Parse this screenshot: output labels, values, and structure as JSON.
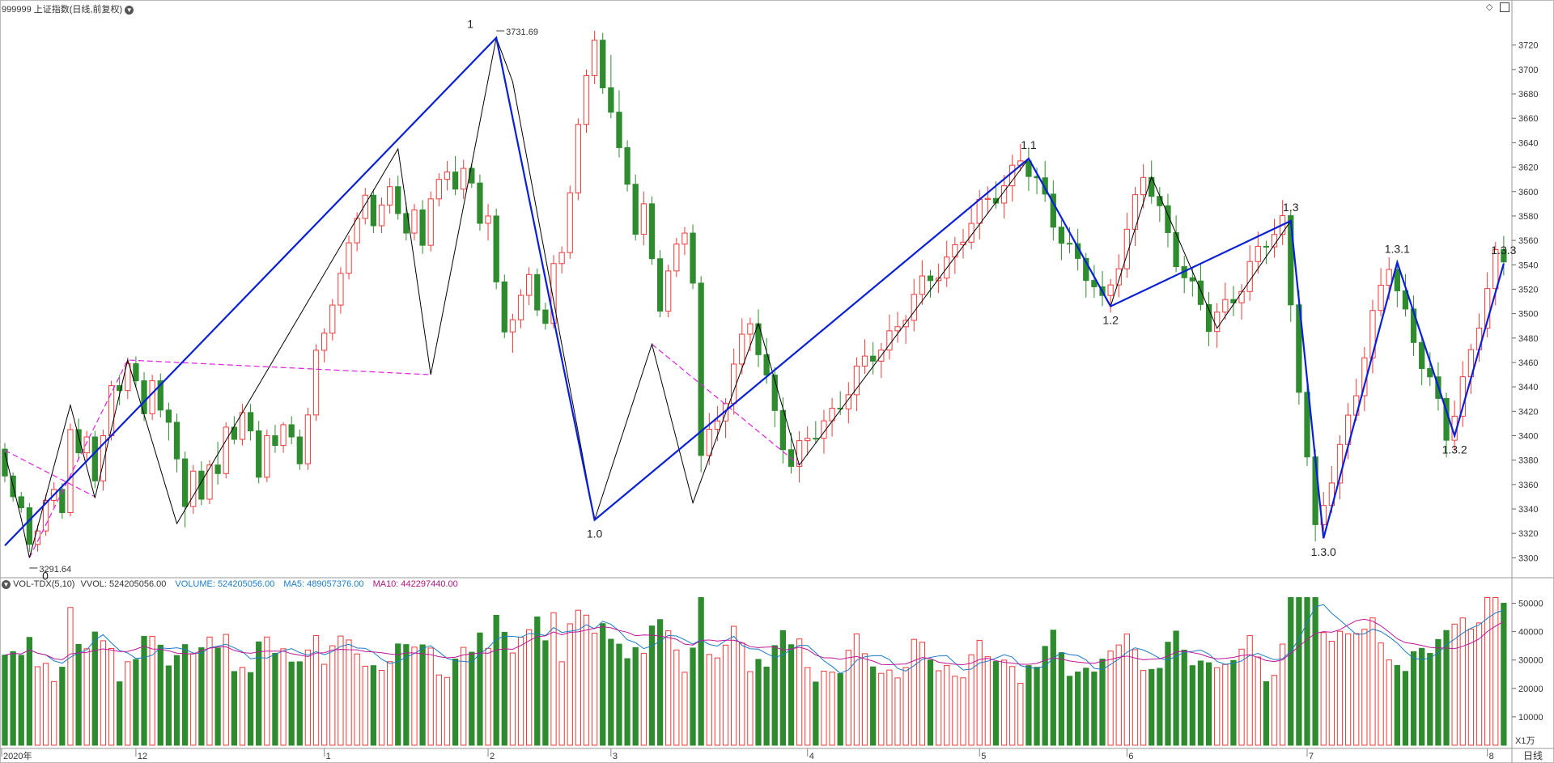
{
  "header": {
    "title": "999999 上证指数(日线,前复权)",
    "menu_icon": "chevron-down-circle-icon",
    "right_icons": [
      "diamond-icon",
      "panel-toggle-icon"
    ]
  },
  "volume_header": {
    "indicator": "VOL-TDX(5,10)",
    "vvol": "VVOL: 524205056.00",
    "volume": "VOLUME: 524205056.00",
    "ma5": "MA5: 489057376.00",
    "ma10": "MA10: 442297440.00"
  },
  "bottom_right_label": "日线",
  "volume_unit": "X1万",
  "colors": {
    "up": "#f23a3a",
    "down": "#2e8b2e",
    "wave_main": "#0a20d8",
    "wave_sub": "#000000",
    "channel": "#e020e0",
    "ma5": "#1a7cc8",
    "ma10": "#c0159a",
    "volume_text": "#1a7cc8",
    "ma10_text": "#b0157f"
  },
  "chart_data": [
    {
      "type": "candlestick",
      "title": "999999 上证指数(日线,前复权)",
      "y_ticks": [
        3300,
        3320,
        3340,
        3360,
        3380,
        3400,
        3420,
        3440,
        3460,
        3480,
        3500,
        3520,
        3540,
        3560,
        3580,
        3600,
        3620,
        3640,
        3660,
        3680,
        3700,
        3720
      ],
      "ylim": [
        3285,
        3745
      ],
      "x_month_labels": [
        "2020年",
        "12",
        "1",
        "2",
        "3",
        "4",
        "5",
        "6",
        "7",
        "8"
      ],
      "annotations": {
        "high": "3731.69",
        "low": "3291.64"
      },
      "wave_labels": [
        "0",
        "1",
        "1.0",
        "1.1",
        "1.2",
        "1.3",
        "1.3.0",
        "1.3.1",
        "1.3.2",
        "1.3.3"
      ],
      "wave_main": [
        [
          0,
          3310
        ],
        [
          60,
          3726
        ],
        [
          72,
          3331
        ],
        [
          125,
          3627
        ],
        [
          135,
          3506
        ],
        [
          157,
          3576
        ],
        [
          161,
          3316
        ],
        [
          170,
          3542
        ],
        [
          177,
          3400
        ],
        [
          183,
          3541
        ]
      ],
      "wave_sub": [
        [
          0,
          3386
        ],
        [
          2,
          3332
        ],
        [
          3,
          3300
        ],
        [
          8,
          3425
        ],
        [
          11,
          3349
        ],
        [
          15,
          3462
        ],
        [
          21,
          3328
        ],
        [
          48,
          3635
        ],
        [
          52,
          3450
        ],
        [
          60,
          3726
        ],
        [
          62,
          3690
        ],
        [
          72,
          3331
        ],
        [
          79,
          3475
        ],
        [
          84,
          3345
        ],
        [
          92,
          3492
        ],
        [
          97,
          3376
        ],
        [
          125,
          3627
        ],
        [
          135,
          3506
        ],
        [
          140,
          3612
        ],
        [
          148,
          3488
        ],
        [
          157,
          3576
        ]
      ],
      "channels": [
        [
          [
            0,
            3388
          ],
          [
            11,
            3350
          ]
        ],
        [
          [
            3,
            3300
          ],
          [
            15,
            3462
          ],
          [
            52,
            3450
          ]
        ],
        [
          [
            79,
            3475
          ],
          [
            97,
            3376
          ]
        ]
      ],
      "candles": [
        [
          3389,
          3394,
          3362,
          3367
        ],
        [
          3367,
          3370,
          3346,
          3350
        ],
        [
          3350,
          3354,
          3337,
          3341
        ],
        [
          3341,
          3345,
          3305,
          3311
        ],
        [
          3311,
          3327,
          3305,
          3322
        ],
        [
          3322,
          3352,
          3318,
          3347
        ],
        [
          3347,
          3362,
          3341,
          3356
        ],
        [
          3356,
          3361,
          3332,
          3337
        ],
        [
          3337,
          3410,
          3334,
          3405
        ],
        [
          3405,
          3414,
          3380,
          3386
        ],
        [
          3386,
          3404,
          3378,
          3399
        ],
        [
          3399,
          3404,
          3357,
          3363
        ],
        [
          3363,
          3405,
          3355,
          3400
        ],
        [
          3400,
          3445,
          3396,
          3441
        ],
        [
          3441,
          3450,
          3425,
          3437
        ],
        [
          3437,
          3464,
          3430,
          3459
        ],
        [
          3459,
          3465,
          3440,
          3445
        ],
        [
          3445,
          3452,
          3412,
          3418
        ],
        [
          3418,
          3450,
          3413,
          3445
        ],
        [
          3445,
          3451,
          3415,
          3421
        ],
        [
          3421,
          3427,
          3396,
          3411
        ],
        [
          3411,
          3418,
          3370,
          3381
        ],
        [
          3381,
          3387,
          3325,
          3342
        ],
        [
          3342,
          3376,
          3336,
          3371
        ],
        [
          3371,
          3379,
          3343,
          3348
        ],
        [
          3348,
          3380,
          3344,
          3376
        ],
        [
          3376,
          3395,
          3360,
          3369
        ],
        [
          3369,
          3411,
          3365,
          3407
        ],
        [
          3407,
          3416,
          3393,
          3397
        ],
        [
          3397,
          3426,
          3392,
          3419
        ],
        [
          3419,
          3426,
          3396,
          3404
        ],
        [
          3404,
          3412,
          3361,
          3366
        ],
        [
          3366,
          3405,
          3362,
          3400
        ],
        [
          3400,
          3409,
          3386,
          3392
        ],
        [
          3392,
          3411,
          3386,
          3409
        ],
        [
          3409,
          3416,
          3393,
          3399
        ],
        [
          3399,
          3405,
          3372,
          3377
        ],
        [
          3377,
          3423,
          3372,
          3417
        ],
        [
          3417,
          3475,
          3412,
          3470
        ],
        [
          3470,
          3488,
          3460,
          3484
        ],
        [
          3484,
          3512,
          3478,
          3507
        ],
        [
          3507,
          3538,
          3500,
          3533
        ],
        [
          3533,
          3564,
          3528,
          3558
        ],
        [
          3558,
          3583,
          3551,
          3578
        ],
        [
          3578,
          3603,
          3573,
          3597
        ],
        [
          3597,
          3602,
          3566,
          3572
        ],
        [
          3572,
          3595,
          3566,
          3589
        ],
        [
          3589,
          3611,
          3582,
          3604
        ],
        [
          3604,
          3613,
          3577,
          3582
        ],
        [
          3582,
          3591,
          3560,
          3566
        ],
        [
          3566,
          3590,
          3560,
          3585
        ],
        [
          3585,
          3593,
          3549,
          3556
        ],
        [
          3556,
          3600,
          3551,
          3594
        ],
        [
          3594,
          3615,
          3588,
          3610
        ],
        [
          3610,
          3625,
          3601,
          3616
        ],
        [
          3616,
          3629,
          3597,
          3602
        ],
        [
          3602,
          3626,
          3594,
          3619
        ],
        [
          3619,
          3623,
          3603,
          3607
        ],
        [
          3607,
          3614,
          3568,
          3574
        ],
        [
          3574,
          3590,
          3560,
          3580
        ]
      ],
      "candles_2": [
        [
          3580,
          3586,
          3520,
          3526
        ],
        [
          3526,
          3532,
          3480,
          3485
        ],
        [
          3485,
          3500,
          3468,
          3495
        ],
        [
          3495,
          3520,
          3488,
          3515
        ],
        [
          3515,
          3538,
          3507,
          3532
        ],
        [
          3532,
          3537,
          3498,
          3503
        ],
        [
          3503,
          3509,
          3487,
          3492
        ],
        [
          3492,
          3548,
          3488,
          3541
        ],
        [
          3541,
          3555,
          3533,
          3550
        ],
        [
          3550,
          3605,
          3545,
          3599
        ],
        [
          3599,
          3660,
          3593,
          3655
        ],
        [
          3655,
          3700,
          3648,
          3695
        ],
        [
          3695,
          3731.69,
          3688,
          3724
        ],
        [
          3724,
          3730,
          3680,
          3685
        ],
        [
          3685,
          3712,
          3660,
          3665
        ],
        [
          3665,
          3683,
          3628,
          3636
        ],
        [
          3636,
          3642,
          3600,
          3606
        ],
        [
          3606,
          3614,
          3560,
          3565
        ],
        [
          3565,
          3600,
          3556,
          3590
        ],
        [
          3590,
          3596,
          3540,
          3545
        ],
        [
          3545,
          3552,
          3497,
          3502
        ],
        [
          3502,
          3540,
          3497,
          3535
        ],
        [
          3535,
          3562,
          3530,
          3557
        ],
        [
          3557,
          3571,
          3548,
          3566
        ],
        [
          3566,
          3573,
          3520,
          3525
        ]
      ]
    },
    {
      "type": "bar",
      "title": "VOL-TDX(5,10)",
      "y_ticks": [
        10000,
        20000,
        30000,
        40000,
        50000
      ],
      "ylim": [
        0,
        55000
      ],
      "unit": "X1万"
    }
  ]
}
